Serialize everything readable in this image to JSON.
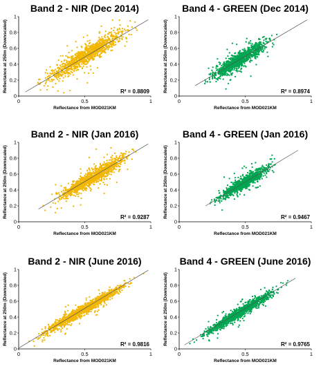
{
  "chart_data": [
    {
      "type": "scatter",
      "title": "Band 2 - NIR (Dec 2014)",
      "xlabel": "Reflectance from MOD021KM",
      "ylabel": "Reflectance at 250m (Downscaled)",
      "xlim": [
        0,
        1
      ],
      "ylim": [
        0,
        1
      ],
      "xticks": [
        "0",
        "0.5",
        "1"
      ],
      "yticks": [
        "0",
        "0.2",
        "0.4",
        "0.6",
        "0.8",
        "1"
      ],
      "r2_label": "R² = 0.8809",
      "color": "#F2B705",
      "points": {
        "x_range": [
          0.05,
          0.98
        ],
        "trend_slope": 1.0,
        "spread": 0.055,
        "count": 1100,
        "seed": 11
      },
      "trendline": [
        [
          0.05,
          0.05
        ],
        [
          0.98,
          0.96
        ]
      ]
    },
    {
      "type": "scatter",
      "title": "Band 4 - GREEN (Dec 2014)",
      "xlabel": "Reflectance from MOD021KM",
      "ylabel": "Reflectance at 250m (Downscaled)",
      "xlim": [
        0,
        1
      ],
      "ylim": [
        0,
        1
      ],
      "xticks": [
        "0",
        "0.5",
        "1"
      ],
      "yticks": [
        "0",
        "0.2",
        "0.4",
        "0.6",
        "0.8",
        "1"
      ],
      "r2_label": "R² = 0.8974",
      "color": "#00A651",
      "points": {
        "x_range": [
          0.12,
          0.8
        ],
        "trend_slope": 1.0,
        "spread": 0.045,
        "count": 1100,
        "seed": 23
      },
      "trendline": [
        [
          0.12,
          0.13
        ],
        [
          0.97,
          0.96
        ]
      ]
    },
    {
      "type": "scatter",
      "title": "Band 2 - NIR (Jan 2016)",
      "xlabel": "Reflectance from MOD021KM",
      "ylabel": "Reflectance at 250m (Downscaled)",
      "xlim": [
        0,
        1
      ],
      "ylim": [
        0,
        1
      ],
      "xticks": [
        "0",
        "0.5",
        "1"
      ],
      "yticks": [
        "0",
        "0.2",
        "0.4",
        "0.6",
        "0.8",
        "1"
      ],
      "r2_label": "R² = 0.9287",
      "color": "#F2B705",
      "points": {
        "x_range": [
          0.15,
          0.98
        ],
        "trend_slope": 1.0,
        "spread": 0.045,
        "count": 1100,
        "seed": 37
      },
      "trendline": [
        [
          0.15,
          0.16
        ],
        [
          0.98,
          0.98
        ]
      ]
    },
    {
      "type": "scatter",
      "title": "Band 4 - GREEN (Jan 2016)",
      "xlabel": "Reflectance from MOD021KM",
      "ylabel": "Reflectance at 250m (Downscaled)",
      "xlim": [
        0,
        1
      ],
      "ylim": [
        0,
        1
      ],
      "xticks": [
        "0",
        "0.5",
        "1"
      ],
      "yticks": [
        "0",
        "0.2",
        "0.4",
        "0.6",
        "0.8",
        "1"
      ],
      "r2_label": "R² = 0.9467",
      "color": "#00A651",
      "points": {
        "x_range": [
          0.2,
          0.78
        ],
        "trend_slope": 1.0,
        "spread": 0.035,
        "count": 1000,
        "seed": 41
      },
      "trendline": [
        [
          0.2,
          0.2
        ],
        [
          0.9,
          0.9
        ]
      ]
    },
    {
      "type": "scatter",
      "title": "Band 2 - NIR (June 2016)",
      "xlabel": "Reflectance from MOD021KM",
      "ylabel": "Reflectance at 250m (Downscaled)",
      "xlim": [
        0,
        1
      ],
      "ylim": [
        0,
        1
      ],
      "xticks": [
        "0",
        "0.5",
        "1"
      ],
      "yticks": [
        "0",
        "0.2",
        "0.4",
        "0.6",
        "0.8",
        "1"
      ],
      "r2_label": "R² = 0.9816",
      "color": "#F2B705",
      "points": {
        "x_range": [
          0.0,
          0.98
        ],
        "trend_slope": 1.0,
        "spread": 0.03,
        "count": 1300,
        "seed": 53
      },
      "trendline": [
        [
          0.0,
          0.01
        ],
        [
          0.98,
          0.99
        ]
      ]
    },
    {
      "type": "scatter",
      "title": "Band 4 - GREEN (June 2016)",
      "xlabel": "Reflectance from MOD021KM",
      "ylabel": "Reflectance at 250m (Downscaled)",
      "xlim": [
        0,
        1
      ],
      "ylim": [
        0,
        1
      ],
      "xticks": [
        "0",
        "0.5",
        "1"
      ],
      "yticks": [
        "0",
        "0.2",
        "0.4",
        "0.6",
        "0.8",
        "1"
      ],
      "r2_label": "R² = 0.9765",
      "color": "#00A651",
      "points": {
        "x_range": [
          0.04,
          0.88
        ],
        "trend_slope": 1.0,
        "spread": 0.03,
        "count": 1200,
        "seed": 67
      },
      "trendline": [
        [
          0.04,
          0.05
        ],
        [
          0.88,
          0.89
        ]
      ]
    }
  ]
}
